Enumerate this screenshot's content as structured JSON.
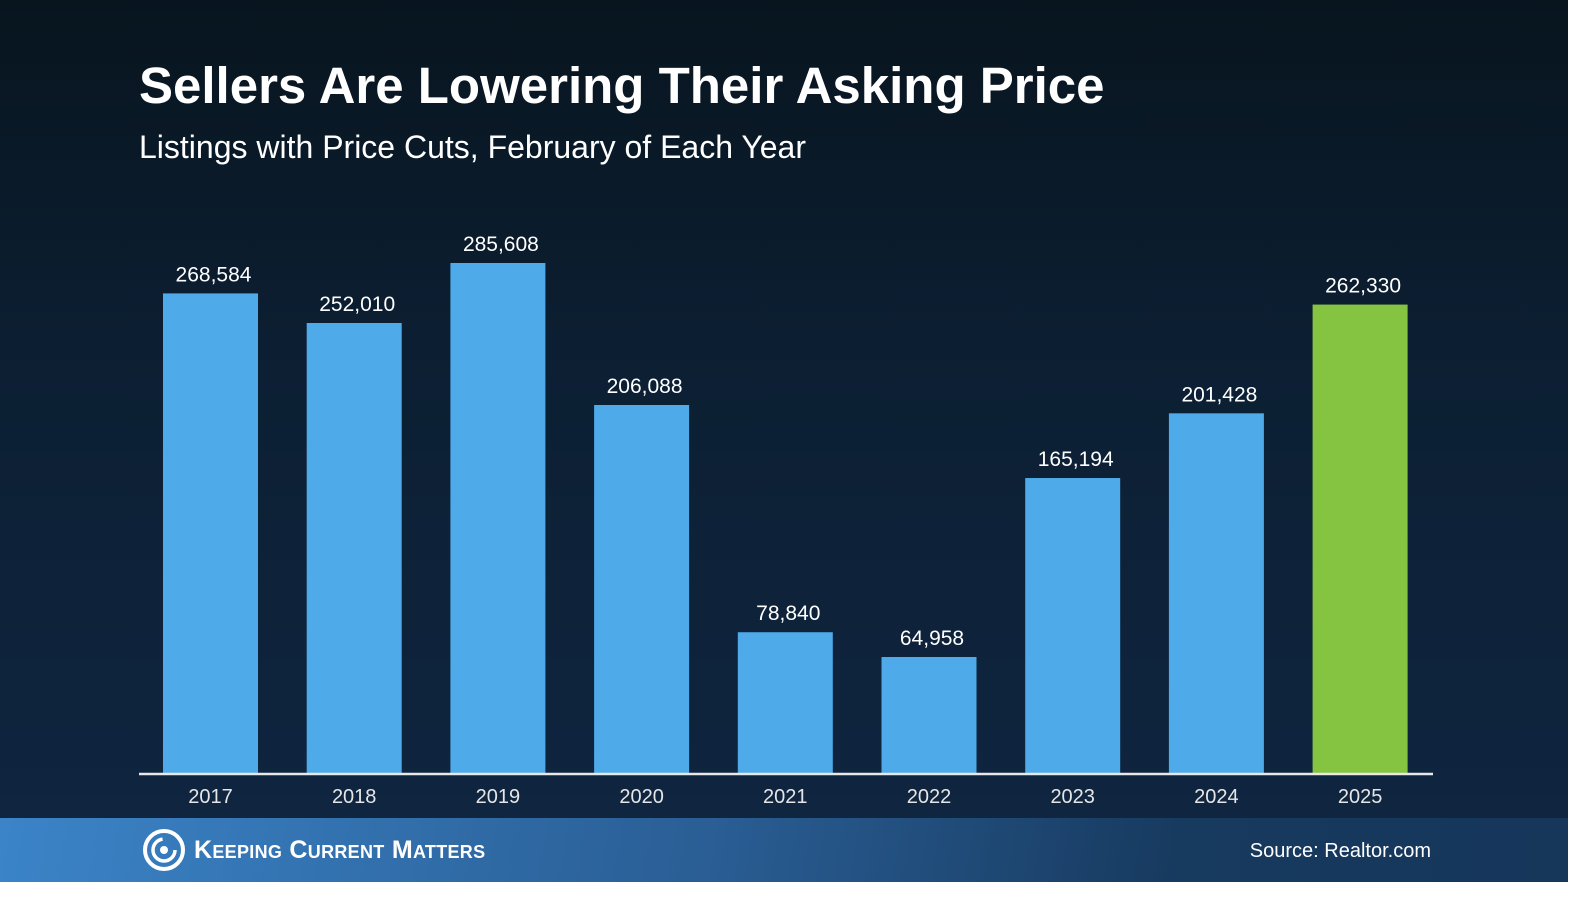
{
  "brand_text": "Keeping Current Matters",
  "source": "Source: Realtor.com",
  "chart_data": {
    "type": "bar",
    "title": "Sellers Are Lowering Their Asking Price",
    "subtitle": "Listings with Price Cuts, February of Each Year",
    "xlabel": "",
    "ylabel": "",
    "categories": [
      "2017",
      "2018",
      "2019",
      "2020",
      "2021",
      "2022",
      "2023",
      "2024",
      "2025"
    ],
    "values": [
      268584,
      252010,
      285608,
      206088,
      78840,
      64958,
      165194,
      201428,
      262330
    ],
    "labels": [
      "268,584",
      "252,010",
      "285,608",
      "206,088",
      "78,840",
      "64,958",
      "165,194",
      "201,428",
      "262,330"
    ],
    "ylim": [
      0,
      285608
    ],
    "grid": false,
    "colors": {
      "default": "#4eaae8",
      "highlight": "#84c441",
      "highlight_index": 8
    }
  }
}
